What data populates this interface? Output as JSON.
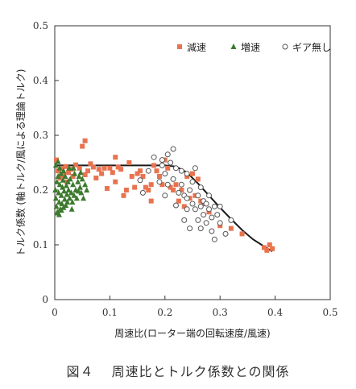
{
  "chart_data": {
    "type": "scatter",
    "xlabel": "周速比(ローター端の回転速度/風速)",
    "ylabel": "トルク係数 (軸トルク/風による理論トルク)",
    "xlim": [
      0,
      0.5
    ],
    "ylim": [
      0,
      0.5
    ],
    "xticks": [
      "0",
      "0.1",
      "0.2",
      "0.3",
      "0.4",
      "0.5"
    ],
    "yticks": [
      "0",
      "0.1",
      "0.2",
      "0.3",
      "0.4",
      "0.5"
    ],
    "legend_position": "top-right",
    "series": [
      {
        "name": "減速",
        "marker": "square",
        "color": "#e8734f",
        "points": [
          [
            0.003,
            0.255
          ],
          [
            0.006,
            0.235
          ],
          [
            0.01,
            0.222
          ],
          [
            0.013,
            0.24
          ],
          [
            0.016,
            0.228
          ],
          [
            0.02,
            0.243
          ],
          [
            0.022,
            0.215
          ],
          [
            0.025,
            0.232
          ],
          [
            0.03,
            0.238
          ],
          [
            0.033,
            0.225
          ],
          [
            0.038,
            0.246
          ],
          [
            0.045,
            0.24
          ],
          [
            0.05,
            0.28
          ],
          [
            0.055,
            0.228
          ],
          [
            0.06,
            0.235
          ],
          [
            0.065,
            0.248
          ],
          [
            0.07,
            0.242
          ],
          [
            0.075,
            0.222
          ],
          [
            0.08,
            0.238
          ],
          [
            0.085,
            0.23
          ],
          [
            0.09,
            0.24
          ],
          [
            0.095,
            0.203
          ],
          [
            0.1,
            0.24
          ],
          [
            0.105,
            0.232
          ],
          [
            0.11,
            0.215
          ],
          [
            0.115,
            0.242
          ],
          [
            0.12,
            0.238
          ],
          [
            0.13,
            0.2
          ],
          [
            0.135,
            0.25
          ],
          [
            0.14,
            0.225
          ],
          [
            0.145,
            0.205
          ],
          [
            0.15,
            0.23
          ],
          [
            0.155,
            0.235
          ],
          [
            0.16,
            0.225
          ],
          [
            0.165,
            0.205
          ],
          [
            0.17,
            0.2
          ],
          [
            0.175,
            0.21
          ],
          [
            0.18,
            0.245
          ],
          [
            0.185,
            0.235
          ],
          [
            0.19,
            0.225
          ],
          [
            0.195,
            0.21
          ],
          [
            0.2,
            0.255
          ],
          [
            0.205,
            0.24
          ],
          [
            0.21,
            0.205
          ],
          [
            0.215,
            0.2
          ],
          [
            0.22,
            0.21
          ],
          [
            0.225,
            0.18
          ],
          [
            0.23,
            0.2
          ],
          [
            0.235,
            0.17
          ],
          [
            0.24,
            0.225
          ],
          [
            0.245,
            0.185
          ],
          [
            0.25,
            0.23
          ],
          [
            0.255,
            0.19
          ],
          [
            0.26,
            0.22
          ],
          [
            0.265,
            0.18
          ],
          [
            0.27,
            0.175
          ],
          [
            0.28,
            0.16
          ],
          [
            0.3,
            0.135
          ],
          [
            0.32,
            0.13
          ],
          [
            0.34,
            0.12
          ],
          [
            0.38,
            0.095
          ],
          [
            0.385,
            0.09
          ],
          [
            0.39,
            0.1
          ],
          [
            0.395,
            0.093
          ],
          [
            0.125,
            0.19
          ],
          [
            0.175,
            0.18
          ],
          [
            0.055,
            0.29
          ],
          [
            0.11,
            0.26
          ]
        ]
      },
      {
        "name": "増速",
        "marker": "triangle",
        "color": "#3d7a2e",
        "points": [
          [
            0.001,
            0.2
          ],
          [
            0.002,
            0.185
          ],
          [
            0.003,
            0.17
          ],
          [
            0.004,
            0.215
          ],
          [
            0.005,
            0.16
          ],
          [
            0.006,
            0.225
          ],
          [
            0.007,
            0.195
          ],
          [
            0.008,
            0.178
          ],
          [
            0.009,
            0.21
          ],
          [
            0.01,
            0.165
          ],
          [
            0.011,
            0.23
          ],
          [
            0.012,
            0.19
          ],
          [
            0.013,
            0.175
          ],
          [
            0.014,
            0.205
          ],
          [
            0.015,
            0.218
          ],
          [
            0.016,
            0.168
          ],
          [
            0.017,
            0.198
          ],
          [
            0.018,
            0.183
          ],
          [
            0.019,
            0.225
          ],
          [
            0.02,
            0.172
          ],
          [
            0.021,
            0.208
          ],
          [
            0.022,
            0.192
          ],
          [
            0.023,
            0.178
          ],
          [
            0.024,
            0.215
          ],
          [
            0.025,
            0.2
          ],
          [
            0.027,
            0.185
          ],
          [
            0.028,
            0.22
          ],
          [
            0.03,
            0.195
          ],
          [
            0.032,
            0.178
          ],
          [
            0.033,
            0.21
          ],
          [
            0.035,
            0.19
          ],
          [
            0.036,
            0.23
          ],
          [
            0.038,
            0.2
          ],
          [
            0.04,
            0.185
          ],
          [
            0.042,
            0.215
          ],
          [
            0.044,
            0.225
          ],
          [
            0.046,
            0.205
          ],
          [
            0.048,
            0.195
          ],
          [
            0.05,
            0.22
          ],
          [
            0.052,
            0.185
          ],
          [
            0.055,
            0.21
          ],
          [
            0.058,
            0.2
          ],
          [
            0.002,
            0.245
          ],
          [
            0.006,
            0.252
          ],
          [
            0.009,
            0.24
          ],
          [
            0.004,
            0.158
          ],
          [
            0.008,
            0.155
          ],
          [
            0.012,
            0.163
          ],
          [
            0.016,
            0.235
          ],
          [
            0.026,
            0.24
          ],
          [
            0.034,
            0.24
          ],
          [
            0.031,
            0.165
          ],
          [
            0.043,
            0.198
          ],
          [
            0.047,
            0.232
          ]
        ]
      },
      {
        "name": "ギア無し",
        "marker": "circle",
        "color": "#555555",
        "points": [
          [
            0.155,
            0.218
          ],
          [
            0.16,
            0.195
          ],
          [
            0.17,
            0.235
          ],
          [
            0.18,
            0.26
          ],
          [
            0.19,
            0.215
          ],
          [
            0.195,
            0.245
          ],
          [
            0.2,
            0.23
          ],
          [
            0.2,
            0.19
          ],
          [
            0.205,
            0.21
          ],
          [
            0.21,
            0.25
          ],
          [
            0.215,
            0.275
          ],
          [
            0.215,
            0.22
          ],
          [
            0.22,
            0.24
          ],
          [
            0.22,
            0.172
          ],
          [
            0.225,
            0.195
          ],
          [
            0.23,
            0.235
          ],
          [
            0.23,
            0.21
          ],
          [
            0.235,
            0.19
          ],
          [
            0.24,
            0.23
          ],
          [
            0.24,
            0.165
          ],
          [
            0.245,
            0.2
          ],
          [
            0.25,
            0.175
          ],
          [
            0.25,
            0.215
          ],
          [
            0.255,
            0.165
          ],
          [
            0.26,
            0.19
          ],
          [
            0.26,
            0.145
          ],
          [
            0.265,
            0.17
          ],
          [
            0.265,
            0.205
          ],
          [
            0.27,
            0.155
          ],
          [
            0.27,
            0.18
          ],
          [
            0.275,
            0.14
          ],
          [
            0.28,
            0.165
          ],
          [
            0.28,
            0.19
          ],
          [
            0.285,
            0.15
          ],
          [
            0.285,
            0.125
          ],
          [
            0.29,
            0.17
          ],
          [
            0.29,
            0.11
          ],
          [
            0.295,
            0.155
          ],
          [
            0.3,
            0.14
          ],
          [
            0.3,
            0.17
          ],
          [
            0.31,
            0.12
          ],
          [
            0.32,
            0.145
          ],
          [
            0.195,
            0.255
          ],
          [
            0.205,
            0.265
          ],
          [
            0.24,
            0.185
          ],
          [
            0.255,
            0.24
          ],
          [
            0.275,
            0.175
          ],
          [
            0.265,
            0.13
          ],
          [
            0.235,
            0.145
          ],
          [
            0.245,
            0.13
          ]
        ]
      }
    ],
    "theory_line": {
      "x": [
        0,
        0.05,
        0.1,
        0.15,
        0.2,
        0.22,
        0.24,
        0.26,
        0.28,
        0.3,
        0.32,
        0.34,
        0.36,
        0.38,
        0.395
      ],
      "y": [
        0.245,
        0.245,
        0.245,
        0.245,
        0.245,
        0.243,
        0.232,
        0.212,
        0.19,
        0.168,
        0.147,
        0.127,
        0.11,
        0.097,
        0.088
      ]
    }
  },
  "caption": {
    "figure_number": "図４",
    "title": "周速比とトルク係数との関係"
  }
}
